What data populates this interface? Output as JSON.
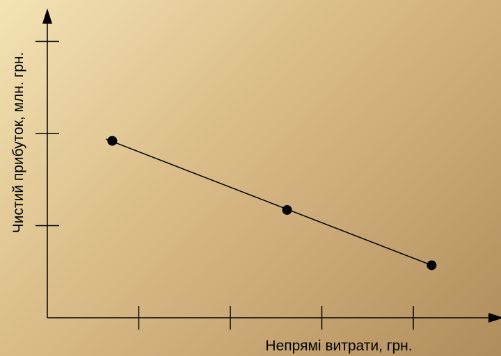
{
  "chart_data": {
    "type": "line",
    "title": "",
    "xlabel": "Непрямі витрати, грн.",
    "ylabel": "Чистий прибуток, млн. грн.",
    "xlim": [
      0,
      5
    ],
    "ylim": [
      0,
      4
    ],
    "x_ticks": [
      1,
      2,
      3,
      4
    ],
    "y_ticks": [
      1,
      2,
      3
    ],
    "x_tick_labels": [
      "",
      "",
      "",
      ""
    ],
    "y_tick_labels": [
      "",
      "",
      ""
    ],
    "grid": false,
    "series": [
      {
        "x": [
          0.71,
          2.62,
          4.2
        ],
        "y": [
          1.92,
          1.17,
          0.57
        ]
      }
    ],
    "trend_line": {
      "x": [
        0.64,
        4.2
      ],
      "y": [
        1.94,
        0.57
      ]
    },
    "colors": {
      "line": "#000000",
      "marker": "#000000",
      "axis": "#000000"
    }
  }
}
